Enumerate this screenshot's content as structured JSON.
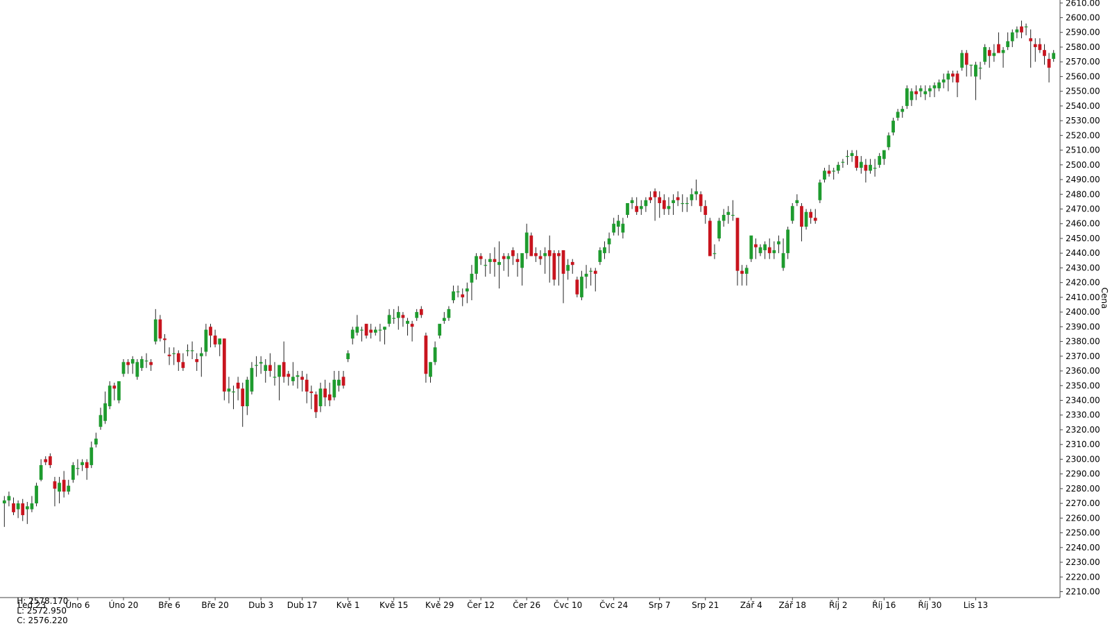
{
  "ohlc_readout": {
    "high": "H: 2578.170",
    "low": "L: 2572.950",
    "close": "C: 2576.220"
  },
  "colors": {
    "up": "#1e9b2e",
    "down": "#c8141e",
    "wick": "#222222",
    "axis": "#444444",
    "background": "#ffffff"
  },
  "chart_data": {
    "type": "candlestick",
    "ylabel": "Cena",
    "ylim": [
      2206,
      2612
    ],
    "y_ticks": [
      "2210.00",
      "2220.00",
      "2230.00",
      "2240.00",
      "2250.00",
      "2260.00",
      "2270.00",
      "2280.00",
      "2290.00",
      "2300.00",
      "2310.00",
      "2320.00",
      "2330.00",
      "2340.00",
      "2350.00",
      "2360.00",
      "2370.00",
      "2380.00",
      "2390.00",
      "2400.00",
      "2410.00",
      "2420.00",
      "2430.00",
      "2440.00",
      "2450.00",
      "2460.00",
      "2470.00",
      "2480.00",
      "2490.00",
      "2500.00",
      "2510.00",
      "2520.00",
      "2530.00",
      "2540.00",
      "2550.00",
      "2560.00",
      "2570.00",
      "2580.00",
      "2590.00",
      "2600.00",
      "2610.00"
    ],
    "x_labels": [
      {
        "label": "Led 23",
        "index": 6
      },
      {
        "label": "Úno 6",
        "index": 16
      },
      {
        "label": "Úno 20",
        "index": 26
      },
      {
        "label": "Bře 6",
        "index": 36
      },
      {
        "label": "Bře 20",
        "index": 46
      },
      {
        "label": "Dub 3",
        "index": 56
      },
      {
        "label": "Dub 17",
        "index": 65
      },
      {
        "label": "Kvě 1",
        "index": 75
      },
      {
        "label": "Kvě 15",
        "index": 85
      },
      {
        "label": "Kvě 29",
        "index": 95
      },
      {
        "label": "Čer 12",
        "index": 104
      },
      {
        "label": "Čer 26",
        "index": 114
      },
      {
        "label": "Čvc 10",
        "index": 123
      },
      {
        "label": "Čvc 24",
        "index": 133
      },
      {
        "label": "Srp 7",
        "index": 143
      },
      {
        "label": "Srp 21",
        "index": 153
      },
      {
        "label": "Zář 4",
        "index": 163
      },
      {
        "label": "Zář 18",
        "index": 172
      },
      {
        "label": "Říj 2",
        "index": 182
      },
      {
        "label": "Říj 16",
        "index": 192
      },
      {
        "label": "Říj 30",
        "index": 202
      },
      {
        "label": "Lis 13",
        "index": 212
      }
    ],
    "candles": [
      [
        2270,
        2275,
        2254,
        2272
      ],
      [
        2272,
        2278,
        2268,
        2275
      ],
      [
        2270,
        2274,
        2262,
        2264
      ],
      [
        2266,
        2272,
        2260,
        2270
      ],
      [
        2270,
        2273,
        2258,
        2262
      ],
      [
        2266,
        2271,
        2256,
        2268
      ],
      [
        2266,
        2275,
        2264,
        2270
      ],
      [
        2270,
        2284,
        2268,
        2282
      ],
      [
        2286,
        2300,
        2285,
        2296
      ],
      [
        2300,
        2302,
        2296,
        2298
      ],
      [
        2302,
        2304,
        2294,
        2296
      ],
      [
        2285,
        2288,
        2268,
        2280
      ],
      [
        2278,
        2288,
        2270,
        2284
      ],
      [
        2286,
        2292,
        2274,
        2278
      ],
      [
        2278,
        2286,
        2276,
        2282
      ],
      [
        2286,
        2298,
        2284,
        2296
      ],
      [
        2294,
        2300,
        2289,
        2294
      ],
      [
        2296,
        2300,
        2292,
        2298
      ],
      [
        2298,
        2300,
        2286,
        2294
      ],
      [
        2296,
        2312,
        2294,
        2308
      ],
      [
        2310,
        2318,
        2308,
        2314
      ],
      [
        2322,
        2335,
        2320,
        2330
      ],
      [
        2326,
        2346,
        2324,
        2338
      ],
      [
        2336,
        2353,
        2334,
        2350
      ],
      [
        2350,
        2352,
        2340,
        2348
      ],
      [
        2340,
        2352,
        2338,
        2353
      ],
      [
        2358,
        2368,
        2356,
        2366
      ],
      [
        2366,
        2368,
        2358,
        2364
      ],
      [
        2365,
        2370,
        2358,
        2368
      ],
      [
        2356,
        2368,
        2354,
        2366
      ],
      [
        2362,
        2370,
        2360,
        2368
      ],
      [
        2367,
        2372,
        2362,
        2367
      ],
      [
        2366,
        2368,
        2360,
        2364
      ],
      [
        2380,
        2402,
        2378,
        2395
      ],
      [
        2395,
        2398,
        2380,
        2382
      ],
      [
        2382,
        2385,
        2372,
        2381
      ],
      [
        2371,
        2376,
        2364,
        2370
      ],
      [
        2372,
        2376,
        2364,
        2372
      ],
      [
        2372,
        2374,
        2360,
        2366
      ],
      [
        2366,
        2372,
        2360,
        2362
      ],
      [
        2374,
        2378,
        2370,
        2374
      ],
      [
        2374,
        2380,
        2368,
        2374
      ],
      [
        2368,
        2372,
        2360,
        2366
      ],
      [
        2370,
        2376,
        2356,
        2372
      ],
      [
        2373,
        2392,
        2370,
        2388
      ],
      [
        2390,
        2392,
        2376,
        2384
      ],
      [
        2384,
        2388,
        2376,
        2378
      ],
      [
        2378,
        2382,
        2370,
        2382
      ],
      [
        2382,
        2382,
        2340,
        2346
      ],
      [
        2346,
        2356,
        2338,
        2348
      ],
      [
        2346,
        2350,
        2334,
        2346
      ],
      [
        2352,
        2356,
        2340,
        2348
      ],
      [
        2348,
        2352,
        2322,
        2336
      ],
      [
        2336,
        2356,
        2330,
        2354
      ],
      [
        2346,
        2366,
        2344,
        2362
      ],
      [
        2364,
        2370,
        2356,
        2364
      ],
      [
        2365,
        2370,
        2358,
        2366
      ],
      [
        2360,
        2368,
        2352,
        2364
      ],
      [
        2364,
        2372,
        2356,
        2360
      ],
      [
        2356,
        2366,
        2350,
        2356
      ],
      [
        2356,
        2364,
        2340,
        2364
      ],
      [
        2366,
        2380,
        2352,
        2356
      ],
      [
        2358,
        2360,
        2350,
        2356
      ],
      [
        2353,
        2366,
        2350,
        2356
      ],
      [
        2356,
        2360,
        2348,
        2357
      ],
      [
        2356,
        2360,
        2346,
        2354
      ],
      [
        2354,
        2358,
        2338,
        2346
      ],
      [
        2346,
        2350,
        2334,
        2345
      ],
      [
        2344,
        2346,
        2328,
        2332
      ],
      [
        2336,
        2352,
        2332,
        2348
      ],
      [
        2348,
        2354,
        2336,
        2342
      ],
      [
        2344,
        2352,
        2336,
        2340
      ],
      [
        2342,
        2360,
        2340,
        2354
      ],
      [
        2350,
        2360,
        2346,
        2354
      ],
      [
        2356,
        2360,
        2348,
        2350
      ],
      [
        2368,
        2374,
        2366,
        2372
      ],
      [
        2382,
        2390,
        2378,
        2388
      ],
      [
        2386,
        2398,
        2384,
        2390
      ],
      [
        2388,
        2390,
        2380,
        2388
      ],
      [
        2392,
        2392,
        2382,
        2384
      ],
      [
        2388,
        2392,
        2382,
        2386
      ],
      [
        2386,
        2390,
        2384,
        2388
      ],
      [
        2388,
        2392,
        2380,
        2388
      ],
      [
        2388,
        2390,
        2378,
        2390
      ],
      [
        2392,
        2402,
        2390,
        2398
      ],
      [
        2396,
        2402,
        2392,
        2396
      ],
      [
        2396,
        2404,
        2388,
        2400
      ],
      [
        2398,
        2400,
        2390,
        2396
      ],
      [
        2392,
        2396,
        2384,
        2394
      ],
      [
        2392,
        2394,
        2380,
        2390
      ],
      [
        2396,
        2402,
        2394,
        2400
      ],
      [
        2402,
        2404,
        2396,
        2398
      ],
      [
        2384,
        2386,
        2352,
        2358
      ],
      [
        2356,
        2366,
        2352,
        2366
      ],
      [
        2366,
        2380,
        2364,
        2376
      ],
      [
        2384,
        2390,
        2382,
        2392
      ],
      [
        2394,
        2400,
        2392,
        2396
      ],
      [
        2396,
        2404,
        2394,
        2402
      ],
      [
        2408,
        2418,
        2406,
        2414
      ],
      [
        2414,
        2418,
        2410,
        2414
      ],
      [
        2412,
        2416,
        2404,
        2410
      ],
      [
        2414,
        2420,
        2406,
        2416
      ],
      [
        2420,
        2432,
        2408,
        2426
      ],
      [
        2426,
        2440,
        2422,
        2438
      ],
      [
        2438,
        2440,
        2432,
        2436
      ],
      [
        2432,
        2436,
        2424,
        2432
      ],
      [
        2434,
        2440,
        2426,
        2436
      ],
      [
        2436,
        2444,
        2424,
        2434
      ],
      [
        2432,
        2448,
        2416,
        2434
      ],
      [
        2438,
        2440,
        2428,
        2436
      ],
      [
        2436,
        2440,
        2424,
        2438
      ],
      [
        2442,
        2444,
        2432,
        2438
      ],
      [
        2436,
        2440,
        2424,
        2434
      ],
      [
        2430,
        2438,
        2418,
        2440
      ],
      [
        2440,
        2460,
        2436,
        2454
      ],
      [
        2452,
        2454,
        2438,
        2438
      ],
      [
        2440,
        2444,
        2434,
        2438
      ],
      [
        2438,
        2442,
        2432,
        2436
      ],
      [
        2438,
        2444,
        2426,
        2440
      ],
      [
        2442,
        2452,
        2420,
        2438
      ],
      [
        2440,
        2442,
        2418,
        2422
      ],
      [
        2440,
        2442,
        2418,
        2438
      ],
      [
        2442,
        2442,
        2406,
        2426
      ],
      [
        2428,
        2436,
        2422,
        2432
      ],
      [
        2434,
        2436,
        2426,
        2432
      ],
      [
        2422,
        2424,
        2410,
        2412
      ],
      [
        2410,
        2428,
        2408,
        2424
      ],
      [
        2424,
        2432,
        2416,
        2426
      ],
      [
        2428,
        2430,
        2418,
        2428
      ],
      [
        2428,
        2430,
        2414,
        2426
      ],
      [
        2434,
        2444,
        2432,
        2442
      ],
      [
        2440,
        2448,
        2436,
        2444
      ],
      [
        2446,
        2454,
        2440,
        2450
      ],
      [
        2454,
        2464,
        2452,
        2460
      ],
      [
        2458,
        2466,
        2452,
        2462
      ],
      [
        2454,
        2464,
        2450,
        2460
      ],
      [
        2466,
        2474,
        2464,
        2474
      ],
      [
        2474,
        2478,
        2470,
        2476
      ],
      [
        2472,
        2478,
        2466,
        2468
      ],
      [
        2470,
        2476,
        2466,
        2472
      ],
      [
        2472,
        2478,
        2468,
        2476
      ],
      [
        2478,
        2482,
        2474,
        2476
      ],
      [
        2482,
        2484,
        2462,
        2478
      ],
      [
        2478,
        2482,
        2464,
        2474
      ],
      [
        2476,
        2480,
        2466,
        2470
      ],
      [
        2470,
        2478,
        2466,
        2472
      ],
      [
        2474,
        2480,
        2466,
        2476
      ],
      [
        2478,
        2482,
        2472,
        2476
      ],
      [
        2474,
        2480,
        2468,
        2474
      ],
      [
        2474,
        2478,
        2468,
        2474
      ],
      [
        2476,
        2484,
        2472,
        2480
      ],
      [
        2480,
        2490,
        2476,
        2482
      ],
      [
        2480,
        2482,
        2468,
        2472
      ],
      [
        2472,
        2476,
        2460,
        2466
      ],
      [
        2462,
        2464,
        2438,
        2438
      ],
      [
        2440,
        2446,
        2436,
        2440
      ],
      [
        2450,
        2464,
        2448,
        2462
      ],
      [
        2462,
        2470,
        2458,
        2466
      ],
      [
        2466,
        2472,
        2460,
        2468
      ],
      [
        2466,
        2476,
        2462,
        2466
      ],
      [
        2464,
        2464,
        2418,
        2428
      ],
      [
        2428,
        2432,
        2418,
        2426
      ],
      [
        2426,
        2432,
        2418,
        2430
      ],
      [
        2436,
        2448,
        2434,
        2452
      ],
      [
        2446,
        2450,
        2436,
        2444
      ],
      [
        2440,
        2446,
        2438,
        2444
      ],
      [
        2442,
        2448,
        2436,
        2446
      ],
      [
        2444,
        2450,
        2436,
        2440
      ],
      [
        2440,
        2448,
        2436,
        2442
      ],
      [
        2446,
        2452,
        2440,
        2448
      ],
      [
        2430,
        2450,
        2428,
        2440
      ],
      [
        2440,
        2458,
        2436,
        2456
      ],
      [
        2462,
        2474,
        2460,
        2472
      ],
      [
        2474,
        2480,
        2472,
        2476
      ],
      [
        2472,
        2474,
        2448,
        2458
      ],
      [
        2458,
        2470,
        2456,
        2468
      ],
      [
        2468,
        2470,
        2460,
        2464
      ],
      [
        2464,
        2470,
        2460,
        2462
      ],
      [
        2476,
        2490,
        2474,
        2488
      ],
      [
        2490,
        2498,
        2488,
        2496
      ],
      [
        2496,
        2500,
        2492,
        2494
      ],
      [
        2496,
        2498,
        2490,
        2496
      ],
      [
        2496,
        2502,
        2494,
        2500
      ],
      [
        2502,
        2504,
        2498,
        2502
      ],
      [
        2506,
        2510,
        2500,
        2506
      ],
      [
        2506,
        2510,
        2502,
        2508
      ],
      [
        2506,
        2510,
        2496,
        2498
      ],
      [
        2498,
        2506,
        2494,
        2502
      ],
      [
        2500,
        2504,
        2488,
        2496
      ],
      [
        2496,
        2504,
        2494,
        2500
      ],
      [
        2498,
        2504,
        2492,
        2498
      ],
      [
        2500,
        2508,
        2498,
        2506
      ],
      [
        2504,
        2508,
        2500,
        2510
      ],
      [
        2512,
        2522,
        2510,
        2520
      ],
      [
        2522,
        2532,
        2520,
        2530
      ],
      [
        2532,
        2538,
        2530,
        2536
      ],
      [
        2536,
        2540,
        2532,
        2538
      ],
      [
        2540,
        2554,
        2538,
        2552
      ],
      [
        2544,
        2552,
        2540,
        2550
      ],
      [
        2550,
        2554,
        2544,
        2548
      ],
      [
        2550,
        2554,
        2546,
        2552
      ],
      [
        2548,
        2554,
        2544,
        2550
      ],
      [
        2550,
        2554,
        2546,
        2552
      ],
      [
        2552,
        2556,
        2546,
        2554
      ],
      [
        2552,
        2558,
        2550,
        2556
      ],
      [
        2556,
        2562,
        2552,
        2558
      ],
      [
        2558,
        2564,
        2550,
        2562
      ],
      [
        2562,
        2564,
        2556,
        2560
      ],
      [
        2562,
        2564,
        2546,
        2556
      ],
      [
        2566,
        2578,
        2564,
        2576
      ],
      [
        2576,
        2578,
        2560,
        2568
      ],
      [
        2568,
        2568,
        2560,
        2568
      ],
      [
        2560,
        2570,
        2544,
        2568
      ],
      [
        2566,
        2570,
        2558,
        2566
      ],
      [
        2570,
        2582,
        2568,
        2580
      ],
      [
        2578,
        2580,
        2566,
        2574
      ],
      [
        2574,
        2582,
        2570,
        2576
      ],
      [
        2582,
        2590,
        2578,
        2576
      ],
      [
        2576,
        2580,
        2566,
        2578
      ],
      [
        2580,
        2590,
        2578,
        2584
      ],
      [
        2584,
        2592,
        2580,
        2590
      ],
      [
        2590,
        2594,
        2586,
        2592
      ],
      [
        2594,
        2598,
        2586,
        2590
      ],
      [
        2594,
        2596,
        2588,
        2594
      ],
      [
        2586,
        2592,
        2566,
        2584
      ],
      [
        2582,
        2586,
        2570,
        2580
      ],
      [
        2582,
        2586,
        2576,
        2578
      ],
      [
        2578,
        2582,
        2568,
        2574
      ],
      [
        2572,
        2576,
        2556,
        2566
      ],
      [
        2572,
        2578,
        2570,
        2576
      ]
    ]
  }
}
